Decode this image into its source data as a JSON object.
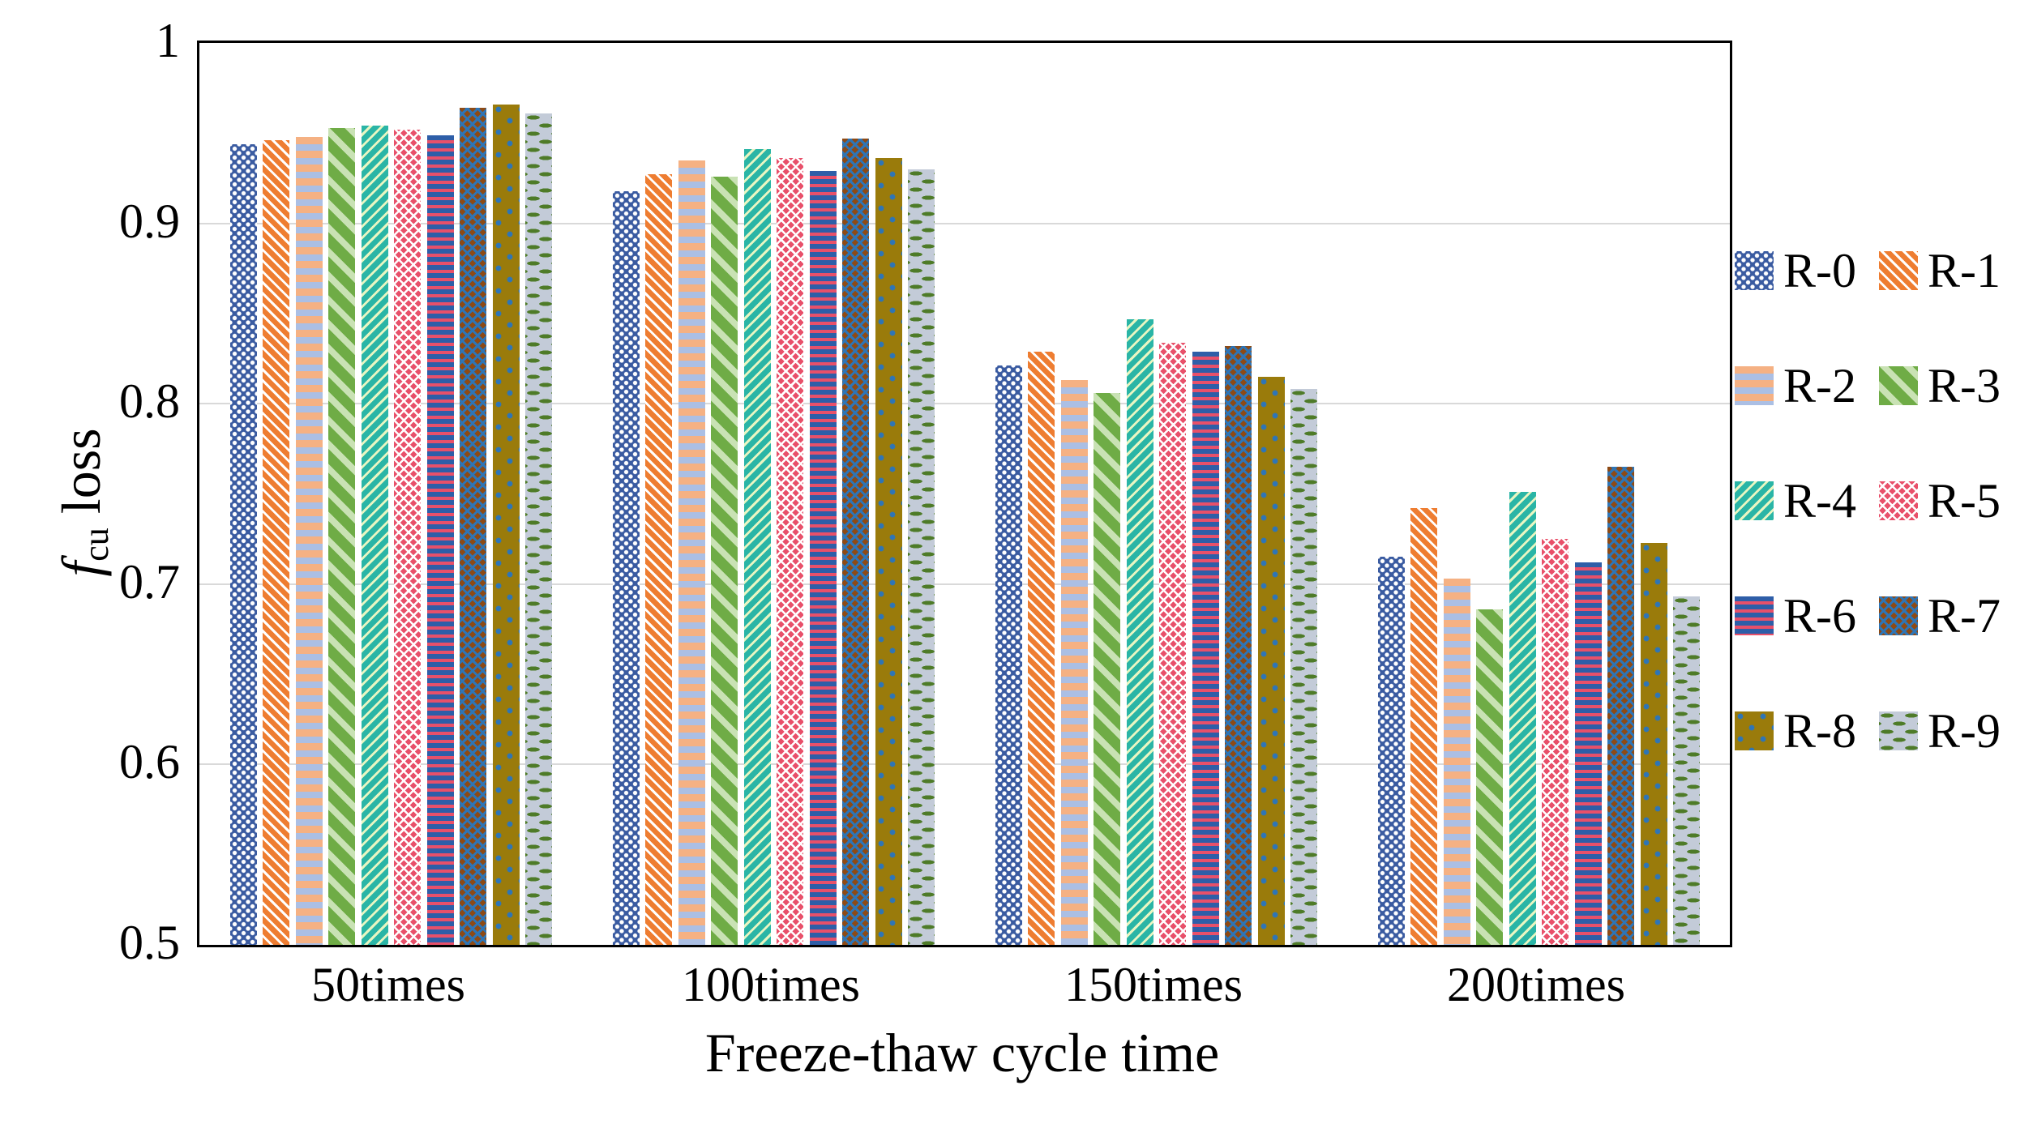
{
  "chart_data": {
    "type": "bar",
    "title": "",
    "xlabel": "Freeze-thaw cycle time",
    "ylabel": "fcu loss",
    "ylabel_parts": {
      "symbol": "f",
      "subscript": "cu",
      "rest": " loss"
    },
    "categories": [
      "50times",
      "100times",
      "150times",
      "200times"
    ],
    "ylim": [
      0.5,
      1.0
    ],
    "grid": "horizontal",
    "legend_position": "right",
    "legend_columns": 2,
    "yticks": [
      {
        "label": "1",
        "value": 1.0
      },
      {
        "label": "0.9",
        "value": 0.9
      },
      {
        "label": "0.8",
        "value": 0.8
      },
      {
        "label": "0.7",
        "value": 0.7
      },
      {
        "label": "0.6",
        "value": 0.6
      },
      {
        "label": "0.5",
        "value": 0.5
      }
    ],
    "series": [
      {
        "name": "R-0",
        "pattern": "dots-lattice",
        "color": "#3A5BA1",
        "accent": "#FFFFFF",
        "values": [
          0.944,
          0.918,
          0.821,
          0.715
        ]
      },
      {
        "name": "R-1",
        "pattern": "diag-down-thin",
        "color": "#EE7D31",
        "accent": "#FFFFFF",
        "values": [
          0.946,
          0.927,
          0.829,
          0.742
        ]
      },
      {
        "name": "R-2",
        "pattern": "hstripe-wide",
        "color": "#F5B183",
        "accent": "#ABBFE4",
        "values": [
          0.948,
          0.935,
          0.813,
          0.703
        ]
      },
      {
        "name": "R-3",
        "pattern": "diag-down-wide",
        "color": "#6FAC46",
        "accent": "#C9E2B4",
        "values": [
          0.953,
          0.926,
          0.806,
          0.686
        ]
      },
      {
        "name": "R-4",
        "pattern": "diag-up-thin",
        "color": "#2AB5A6",
        "accent": "#E9F6C2",
        "values": [
          0.954,
          0.941,
          0.847,
          0.751
        ]
      },
      {
        "name": "R-5",
        "pattern": "zigzag",
        "color": "#E8506A",
        "accent": "#FFFFFF",
        "values": [
          0.952,
          0.936,
          0.834,
          0.725
        ]
      },
      {
        "name": "R-6",
        "pattern": "hstripe-thin",
        "color": "#2E5EA8",
        "accent": "#E8506A",
        "values": [
          0.949,
          0.929,
          0.829,
          0.712
        ]
      },
      {
        "name": "R-7",
        "pattern": "crosshatch",
        "color": "#8D4A15",
        "accent": "#2E75B6",
        "values": [
          0.964,
          0.947,
          0.832,
          0.765
        ]
      },
      {
        "name": "R-8",
        "pattern": "dots-sparse",
        "color": "#9A7B0B",
        "accent": "#2E75B6",
        "values": [
          0.966,
          0.936,
          0.815,
          0.723
        ]
      },
      {
        "name": "R-9",
        "pattern": "dashes",
        "color": "#C3CBD8",
        "accent": "#4E7B28",
        "values": [
          0.961,
          0.93,
          0.808,
          0.693
        ]
      }
    ]
  },
  "colors": {
    "background": "#FFFFFF",
    "axis": "#000000",
    "grid": "#D9D9D9",
    "text": "#000000"
  }
}
